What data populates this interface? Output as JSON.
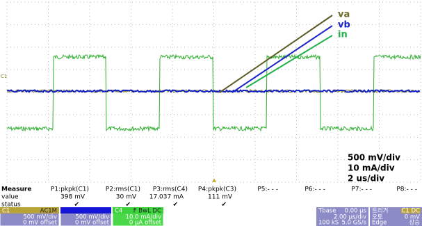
{
  "waveform_labels": {
    "va": "va",
    "vb": "vb",
    "in": "in"
  },
  "scale_labels": [
    "500 mV/div",
    "10 mA/div",
    "2 us/div"
  ],
  "channel_marker": "C1",
  "measure": {
    "headers": [
      "Measure",
      "P1:pkpk(C1)",
      "P2:rms(C1)",
      "P3:rms(C4)",
      "P4:pkpk(C3)",
      "P5:- - -",
      "P6:- - -",
      "P7:- - -",
      "P8:- - -"
    ],
    "value_row": [
      "value",
      "398 mV",
      "30 mV",
      "17.037 mA",
      "111 mV"
    ],
    "status_row": [
      "status",
      "✔",
      "✔",
      "✔",
      "✔"
    ]
  },
  "channels": [
    {
      "name": "C1",
      "coupling": "AC1M",
      "scale": "500 mV/div",
      "offset": "0 mV offset"
    },
    {
      "scale": "500 mV/div",
      "offset": "0 mV offset"
    },
    {
      "name": "C4",
      "coupling": "F BwL DC",
      "scale": "10.0 mA/div",
      "offset": "0 µA offset"
    }
  ],
  "timebase": {
    "title": "Tbase",
    "delay": "0.00 µs",
    "scale": "2.00 µs/div",
    "samples": "100 kS",
    "rate": "5.0 GS/s"
  },
  "trigger": {
    "title": "트리거",
    "source": "C1 DC",
    "mode": "오토",
    "level": "0 mV",
    "type": "Edge",
    "slope": "상승"
  }
}
